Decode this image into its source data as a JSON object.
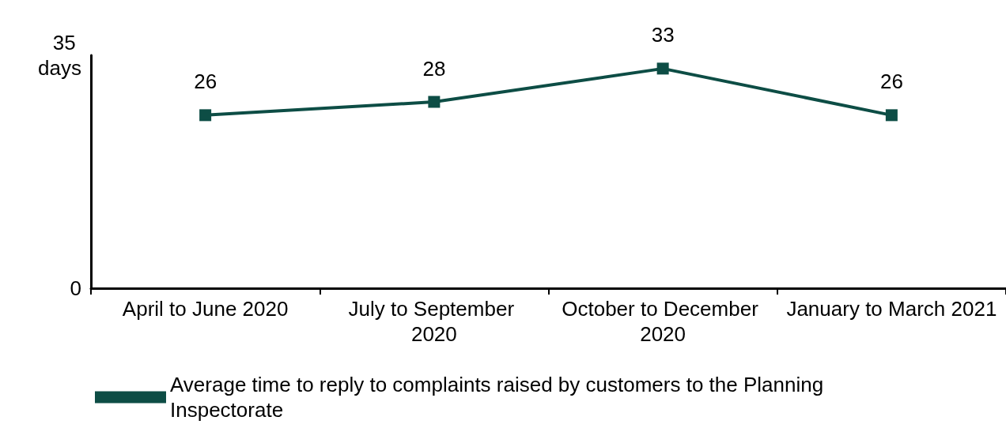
{
  "chart_data": {
    "type": "line",
    "categories": [
      "April to June 2020",
      "July to September 2020",
      "October to December 2020",
      "January to March 2021"
    ],
    "series": [
      {
        "name": "Average time to reply to complaints raised by customers to the Planning Inspectorate",
        "color": "#0d4d45",
        "values": [
          26,
          28,
          33,
          26
        ]
      }
    ],
    "ylim": [
      0,
      35
    ],
    "yticks": [
      0,
      {
        "value": 35,
        "label": "35 days"
      }
    ],
    "grid": false,
    "legend": "bottom",
    "marker": "square",
    "line_style": "solid",
    "data_labels": true
  }
}
